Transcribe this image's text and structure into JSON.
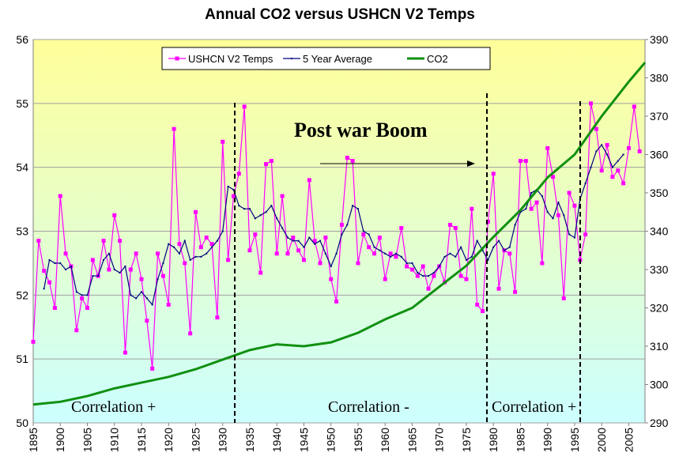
{
  "chart_data": {
    "type": "line",
    "title": "Annual CO2 versus USHCN V2 Temps",
    "x": [
      1895,
      1896,
      1897,
      1898,
      1899,
      1900,
      1901,
      1902,
      1903,
      1904,
      1905,
      1906,
      1907,
      1908,
      1909,
      1910,
      1911,
      1912,
      1913,
      1914,
      1915,
      1916,
      1917,
      1918,
      1919,
      1920,
      1921,
      1922,
      1923,
      1924,
      1925,
      1926,
      1927,
      1928,
      1929,
      1930,
      1931,
      1932,
      1933,
      1934,
      1935,
      1936,
      1937,
      1938,
      1939,
      1940,
      1941,
      1942,
      1943,
      1944,
      1945,
      1946,
      1947,
      1948,
      1949,
      1950,
      1951,
      1952,
      1953,
      1954,
      1955,
      1956,
      1957,
      1958,
      1959,
      1960,
      1961,
      1962,
      1963,
      1964,
      1965,
      1966,
      1967,
      1968,
      1969,
      1970,
      1971,
      1972,
      1973,
      1974,
      1975,
      1976,
      1977,
      1978,
      1979,
      1980,
      1981,
      1982,
      1983,
      1984,
      1985,
      1986,
      1987,
      1988,
      1989,
      1990,
      1991,
      1992,
      1993,
      1994,
      1995,
      1996,
      1997,
      1998,
      1999,
      2000,
      2001,
      2002,
      2003,
      2004,
      2005,
      2006,
      2007
    ],
    "series": [
      {
        "name": "USHCN V2 Temps",
        "color": "#ff00ff",
        "marker": true,
        "values": [
          51.27,
          52.85,
          52.38,
          52.2,
          51.8,
          53.55,
          52.65,
          52.45,
          51.45,
          51.95,
          51.8,
          52.55,
          52.3,
          52.85,
          52.4,
          53.25,
          52.85,
          51.1,
          52.4,
          52.65,
          52.25,
          51.6,
          50.85,
          52.65,
          52.3,
          51.85,
          54.6,
          52.8,
          52.5,
          51.4,
          53.3,
          52.75,
          52.9,
          52.8,
          51.65,
          54.4,
          52.55,
          53.55,
          53.9,
          54.95,
          52.7,
          52.95,
          52.35,
          54.05,
          54.1,
          52.65,
          53.55,
          52.65,
          52.9,
          52.7,
          52.55,
          53.8,
          52.85,
          52.5,
          52.9,
          52.25,
          51.9,
          53.1,
          54.15,
          54.1,
          52.5,
          52.95,
          52.75,
          52.65,
          52.9,
          52.25,
          52.65,
          52.6,
          53.05,
          52.45,
          52.4,
          52.3,
          52.45,
          52.1,
          52.3,
          52.45,
          52.2,
          53.1,
          53.05,
          52.3,
          52.25,
          53.35,
          51.85,
          51.75,
          53.15,
          53.9,
          52.1,
          52.7,
          52.65,
          52.05,
          54.1,
          54.1,
          53.35,
          53.45,
          52.5,
          54.3,
          53.85,
          53.25,
          51.95,
          53.6,
          53.4,
          52.55,
          52.95,
          55.0,
          54.6,
          53.95,
          54.35,
          53.85,
          53.95,
          53.75,
          54.3,
          54.95,
          54.25
        ]
      },
      {
        "name": "5 Year Average",
        "color": "#000080",
        "values": [
          null,
          null,
          52.1,
          52.55,
          52.5,
          52.5,
          52.4,
          52.45,
          52.05,
          52.0,
          52.0,
          52.3,
          52.3,
          52.55,
          52.65,
          52.4,
          52.35,
          52.45,
          52.0,
          51.95,
          52.05,
          51.95,
          51.85,
          52.25,
          52.5,
          52.8,
          52.75,
          52.65,
          52.85,
          52.55,
          52.6,
          52.6,
          52.65,
          52.75,
          52.85,
          53.0,
          53.7,
          53.65,
          53.4,
          53.35,
          53.35,
          53.2,
          53.25,
          53.3,
          53.4,
          53.2,
          53.05,
          52.9,
          52.85,
          52.85,
          52.75,
          52.9,
          52.8,
          52.85,
          52.65,
          52.45,
          52.65,
          52.95,
          53.1,
          53.4,
          53.35,
          53.0,
          52.95,
          52.75,
          52.7,
          52.65,
          52.6,
          52.65,
          52.6,
          52.5,
          52.5,
          52.35,
          52.3,
          52.3,
          52.35,
          52.45,
          52.6,
          52.65,
          52.6,
          52.75,
          52.55,
          52.6,
          52.85,
          52.7,
          52.55,
          52.75,
          52.85,
          52.7,
          52.75,
          53.1,
          53.3,
          53.35,
          53.6,
          53.65,
          53.55,
          53.3,
          53.2,
          53.45,
          53.25,
          52.95,
          52.9,
          53.5,
          53.75,
          54.0,
          54.25,
          54.35,
          54.2,
          54.0,
          54.1,
          54.2,
          null,
          null,
          null
        ]
      },
      {
        "name": "CO2",
        "color": "#109010",
        "axis": "y2",
        "x": [
          1895,
          1900,
          1905,
          1910,
          1915,
          1920,
          1925,
          1930,
          1935,
          1940,
          1945,
          1950,
          1955,
          1960,
          1965,
          1970,
          1975,
          1980,
          1985,
          1990,
          1995,
          2000,
          2005,
          2008
        ],
        "values": [
          294.8,
          295.5,
          297,
          299,
          300.5,
          302,
          304,
          306.5,
          309,
          310.5,
          310,
          311,
          313.5,
          317,
          320,
          325.5,
          331,
          338.5,
          345.5,
          354,
          360,
          370,
          379,
          384
        ]
      }
    ],
    "xlim": [
      1895,
      2008
    ],
    "xticks": [
      1895,
      1900,
      1905,
      1910,
      1915,
      1920,
      1925,
      1930,
      1935,
      1940,
      1945,
      1950,
      1955,
      1960,
      1965,
      1970,
      1975,
      1980,
      1985,
      1990,
      1995,
      2000,
      2005
    ],
    "ylim": [
      50,
      56
    ],
    "yticks": [
      50,
      51,
      52,
      53,
      54,
      55,
      56
    ],
    "y2lim": [
      290,
      390
    ],
    "y2ticks": [
      290,
      300,
      310,
      320,
      330,
      340,
      350,
      360,
      370,
      380,
      390
    ],
    "grid": true,
    "annotations": [
      "Post war Boom",
      "Correlation +",
      "Correlation -",
      "Correlation +"
    ]
  }
}
